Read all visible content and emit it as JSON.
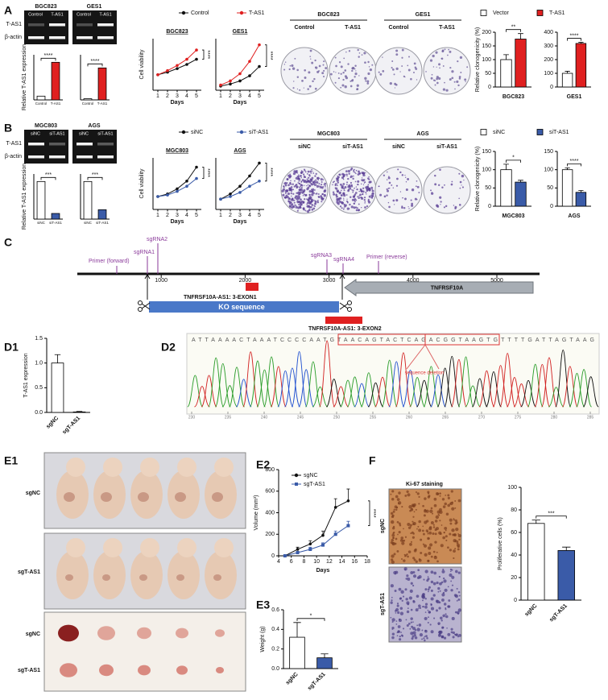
{
  "panel_labels": [
    "A",
    "B",
    "C",
    "D1",
    "D2",
    "E1",
    "E2",
    "E3",
    "F"
  ],
  "gels": [
    {
      "headers": [
        "BGC823",
        "GES1"
      ],
      "lanes": [
        [
          "Control",
          "T-AS1"
        ],
        [
          "Control",
          "T-AS1"
        ]
      ],
      "rows": [
        "T-AS1",
        "β-actin"
      ]
    },
    {
      "headers": [
        "MGC803",
        "AGS"
      ],
      "lanes": [
        [
          "siNC",
          "siT-AS1"
        ],
        [
          "siNC",
          "siT-AS1"
        ]
      ],
      "rows": [
        "T-AS1",
        "β-actin"
      ]
    }
  ],
  "colonies": [
    {
      "headers": [
        "BGC823",
        "GES1"
      ],
      "lanes": [
        [
          "Control",
          "T-AS1"
        ],
        [
          "Control",
          "T-AS1"
        ]
      ]
    },
    {
      "headers": [
        "MGC803",
        "AGS"
      ],
      "lanes": [
        [
          "siNC",
          "siT-AS1"
        ],
        [
          "siNC",
          "siT-AS1"
        ]
      ]
    }
  ],
  "diagram": {
    "features": [
      "Primer (forward)",
      "sgRNA1",
      "sgRNA2",
      "sgRNA3",
      "sgRNA4",
      "Primer (reverse)",
      "TNFRSF10A",
      "KO sequence",
      "TNFRSF10A-AS1: 3-EXON1",
      "TNFRSF10A-AS1: 3-EXON2"
    ],
    "ticks": [
      1000,
      2000,
      3000,
      4000,
      5000
    ]
  },
  "chromatogram": {
    "sequence": "ATTAAAACTAAATCCCCAATGTAACAGTACTCAGACGGTAAGTGTTTTGATTAGTAAG",
    "annotation": "sequence deletion",
    "xticks": [
      230,
      235,
      240,
      245,
      250,
      255,
      260,
      265,
      270,
      275,
      280,
      285
    ]
  },
  "mice": {
    "labels": [
      "sgNC",
      "sgT-AS1",
      "sgNC",
      "sgT-AS1"
    ]
  },
  "ihc": {
    "title": "Ki-67 staining",
    "labels": [
      "sgNC",
      "sgT-AS1"
    ]
  },
  "chart_data": [
    {
      "type": "bar",
      "ylabel": "Relative T-AS1 expression",
      "categories": [
        "Control",
        "T-AS1"
      ],
      "values": [
        0.1,
        1.0
      ],
      "colors": [
        "#ffffff",
        "#e02020"
      ],
      "ylim": [
        0,
        1.2
      ],
      "annotation": "****"
    },
    {
      "type": "bar",
      "categories": [
        "Control",
        "T-AS1"
      ],
      "values": [
        0.03,
        0.85
      ],
      "colors": [
        "#ffffff",
        "#e02020"
      ],
      "ylim": [
        0,
        1.2
      ],
      "annotation": "****"
    },
    {
      "type": "line",
      "title": "BGC823",
      "ylabel": "Cell viability",
      "xlabel": "Days",
      "x": [
        1,
        2,
        3,
        4,
        5
      ],
      "xlim": [
        0.5,
        5.5
      ],
      "xticks": [
        1,
        2,
        3,
        4,
        5
      ],
      "ylim": [
        0,
        1
      ],
      "series": [
        {
          "name": "Control",
          "color": "#111111",
          "values": [
            0.3,
            0.35,
            0.42,
            0.5,
            0.6
          ]
        },
        {
          "name": "T-AS1",
          "color": "#e02020",
          "values": [
            0.3,
            0.38,
            0.48,
            0.6,
            0.78
          ]
        }
      ],
      "annotation": "****"
    },
    {
      "type": "line",
      "title": "GES1",
      "xlabel": "Days",
      "x": [
        1,
        2,
        3,
        4,
        5
      ],
      "xlim": [
        0.5,
        5.5
      ],
      "xticks": [
        1,
        2,
        3,
        4,
        5
      ],
      "ylim": [
        0,
        2.5
      ],
      "series": [
        {
          "name": "Control",
          "color": "#111111",
          "values": [
            0.2,
            0.3,
            0.45,
            0.7,
            1.15
          ]
        },
        {
          "name": "T-AS1",
          "color": "#e02020",
          "values": [
            0.25,
            0.45,
            0.8,
            1.4,
            2.2
          ]
        }
      ],
      "annotation": "****"
    },
    {
      "type": "bar",
      "ylabel": "Relative clonogenicity (%)",
      "categories": [
        "BGC823"
      ],
      "series": [
        {
          "name": "Vector",
          "color": "#ffffff",
          "values": [
            100
          ],
          "errors": [
            18
          ]
        },
        {
          "name": "T-AS1",
          "color": "#e02020",
          "values": [
            175
          ],
          "errors": [
            20
          ]
        }
      ],
      "ylim": [
        0,
        200
      ],
      "yticks": [
        0,
        50,
        100,
        150,
        200
      ],
      "annotation": "**"
    },
    {
      "type": "bar",
      "categories": [
        "GES1"
      ],
      "series": [
        {
          "name": "Vector",
          "color": "#ffffff",
          "values": [
            100
          ],
          "errors": [
            15
          ]
        },
        {
          "name": "T-AS1",
          "color": "#e02020",
          "values": [
            318
          ],
          "errors": [
            8
          ]
        }
      ],
      "ylim": [
        0,
        400
      ],
      "yticks": [
        0,
        100,
        200,
        300,
        400
      ],
      "annotation": "****"
    },
    {
      "type": "bar",
      "ylabel": "Relative T-AS1 expression",
      "categories": [
        "siNC",
        "siT-AS1"
      ],
      "values": [
        1.0,
        0.15
      ],
      "colors": [
        "#ffffff",
        "#3a5ba8"
      ],
      "ylim": [
        0,
        1.2
      ],
      "annotation": "***"
    },
    {
      "type": "bar",
      "categories": [
        "siNC",
        "siT-AS1"
      ],
      "values": [
        1.0,
        0.25
      ],
      "colors": [
        "#ffffff",
        "#3a5ba8"
      ],
      "ylim": [
        0,
        1.2
      ],
      "annotation": "***"
    },
    {
      "type": "line",
      "title": "MGC803",
      "ylabel": "Cell viability",
      "xlabel": "Days",
      "x": [
        1,
        2,
        3,
        4,
        5
      ],
      "xlim": [
        0.5,
        5.5
      ],
      "xticks": [
        1,
        2,
        3,
        4,
        5
      ],
      "ylim": [
        0,
        1
      ],
      "series": [
        {
          "name": "siNC",
          "color": "#111111",
          "values": [
            0.25,
            0.3,
            0.4,
            0.55,
            0.82
          ]
        },
        {
          "name": "siT-AS1",
          "color": "#3a5ba8",
          "values": [
            0.25,
            0.28,
            0.35,
            0.45,
            0.6
          ]
        }
      ],
      "annotation": "****"
    },
    {
      "type": "line",
      "title": "AGS",
      "xlabel": "Days",
      "x": [
        1,
        2,
        3,
        4,
        5
      ],
      "xlim": [
        0.5,
        5.5
      ],
      "xticks": [
        1,
        2,
        3,
        4,
        5
      ],
      "ylim": [
        0,
        1
      ],
      "series": [
        {
          "name": "siNC",
          "color": "#111111",
          "values": [
            0.2,
            0.3,
            0.45,
            0.65,
            0.9
          ]
        },
        {
          "name": "siT-AS1",
          "color": "#3a5ba8",
          "values": [
            0.2,
            0.25,
            0.33,
            0.45,
            0.55
          ]
        }
      ],
      "annotation": "****"
    },
    {
      "type": "bar",
      "ylabel": "Relative clonogenicity (%)",
      "categories": [
        "MGC803"
      ],
      "series": [
        {
          "name": "siNC",
          "color": "#ffffff",
          "values": [
            100
          ],
          "errors": [
            15
          ]
        },
        {
          "name": "siT-AS1",
          "color": "#3a5ba8",
          "values": [
            66
          ],
          "errors": [
            5
          ]
        }
      ],
      "ylim": [
        0,
        150
      ],
      "yticks": [
        0,
        50,
        100,
        150
      ],
      "annotation": "*"
    },
    {
      "type": "bar",
      "categories": [
        "AGS"
      ],
      "series": [
        {
          "name": "siNC",
          "color": "#ffffff",
          "values": [
            100
          ],
          "errors": [
            5
          ]
        },
        {
          "name": "siT-AS1",
          "color": "#3a5ba8",
          "values": [
            38
          ],
          "errors": [
            5
          ]
        }
      ],
      "ylim": [
        0,
        150
      ],
      "yticks": [
        0,
        50,
        100,
        150
      ],
      "annotation": "****"
    },
    {
      "type": "bar",
      "ylabel": "T-AS1 expression",
      "categories": [
        "sgNC",
        "sgT-AS1"
      ],
      "values": [
        1.0,
        0.01
      ],
      "errors": [
        0.17,
        0.01
      ],
      "colors": [
        "#ffffff",
        "#ffffff"
      ],
      "ylim": [
        0,
        1.5
      ],
      "yticks": [
        {
          "value": 0,
          "label": "0.0"
        },
        {
          "value": 0.5,
          "label": "0.5"
        },
        {
          "value": 1,
          "label": "1.0"
        },
        {
          "value": 1.5,
          "label": "1.5"
        }
      ]
    },
    {
      "type": "line",
      "ylabel": "Volume (mm³)",
      "xlabel": "Days",
      "x": [
        5,
        7,
        9,
        11,
        13,
        15
      ],
      "xlim": [
        4,
        18
      ],
      "xticks": [
        4,
        6,
        8,
        10,
        12,
        14,
        16,
        18
      ],
      "ylim": [
        0,
        800
      ],
      "yticks": [
        0,
        200,
        400,
        600,
        800
      ],
      "series": [
        {
          "name": "sgNC",
          "color": "#111111",
          "marker": "circle",
          "values": [
            0,
            60,
            110,
            190,
            450,
            510
          ],
          "errors": [
            0,
            20,
            30,
            40,
            80,
            110
          ]
        },
        {
          "name": "sgT-AS1",
          "color": "#3a5ba8",
          "marker": "square",
          "values": [
            0,
            30,
            60,
            100,
            200,
            280
          ],
          "errors": [
            0,
            10,
            20,
            20,
            30,
            40
          ]
        }
      ],
      "annotation": "****"
    },
    {
      "type": "bar",
      "ylabel": "Weight (g)",
      "categories": [
        "sgNC",
        "sgT-AS1"
      ],
      "values": [
        0.32,
        0.11
      ],
      "errors": [
        0.15,
        0.04
      ],
      "colors": [
        "#ffffff",
        "#3a5ba8"
      ],
      "ylim": [
        0,
        0.6
      ],
      "yticks": [
        {
          "value": 0,
          "label": "0.0"
        },
        {
          "value": 0.2,
          "label": "0.2"
        },
        {
          "value": 0.4,
          "label": "0.4"
        },
        {
          "value": 0.6,
          "label": "0.6"
        }
      ],
      "annotation": "*"
    },
    {
      "type": "bar",
      "ylabel": "Proliferative cells (%)",
      "categories": [
        "sgNC",
        "sgT-AS1"
      ],
      "values": [
        68,
        44
      ],
      "errors": [
        3,
        3
      ],
      "colors": [
        "#ffffff",
        "#3a5ba8"
      ],
      "ylim": [
        0,
        100
      ],
      "yticks": [
        0,
        20,
        40,
        60,
        80,
        100
      ],
      "annotation": "***"
    }
  ]
}
